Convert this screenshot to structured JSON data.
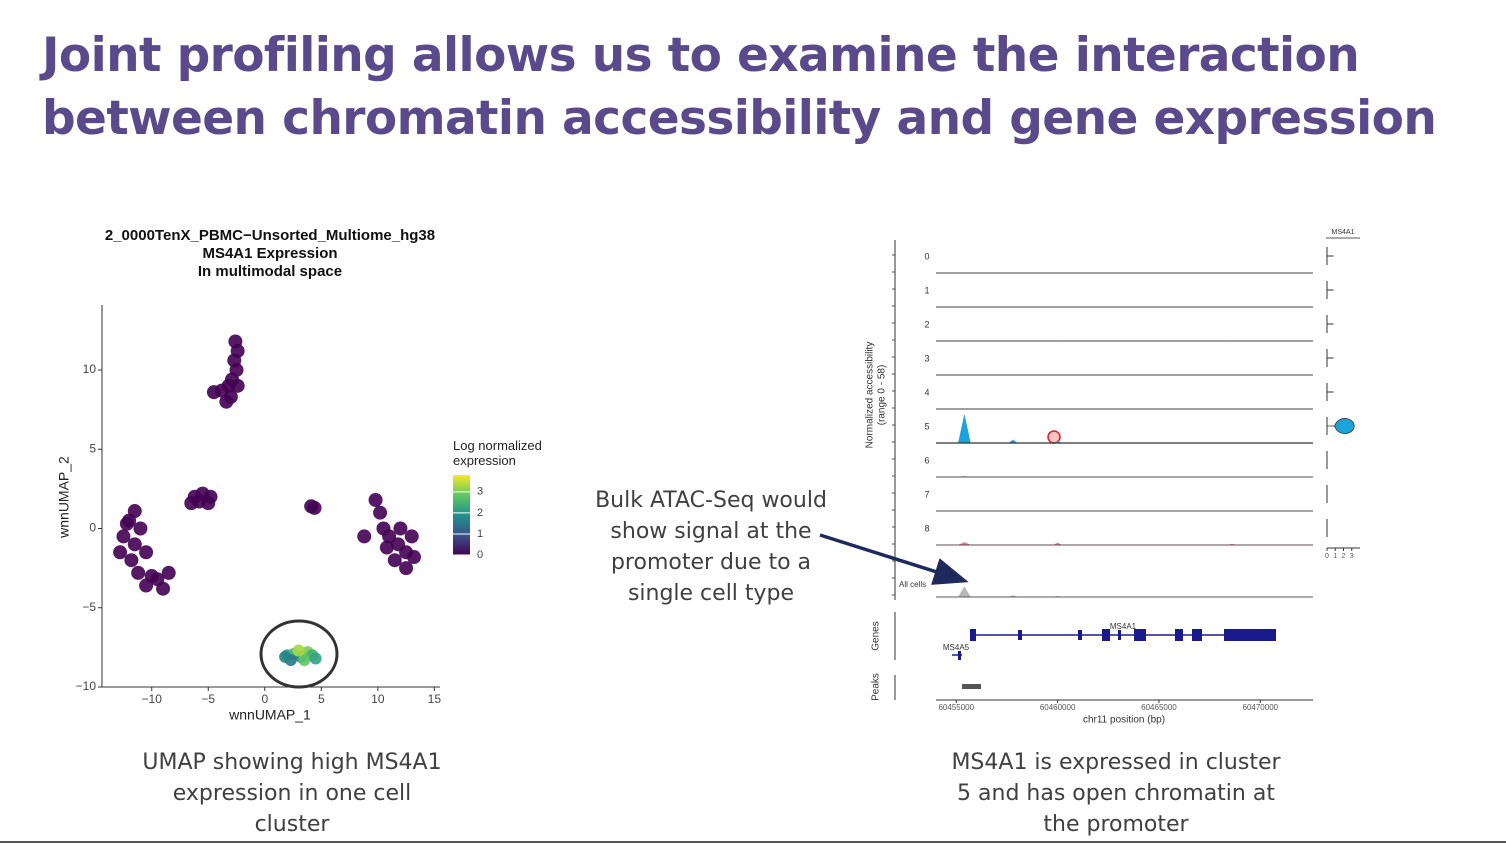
{
  "title": "Joint profiling allows us to examine the interaction between chromatin accessibility and gene expression",
  "chart_data": [
    {
      "type": "scatter",
      "title": [
        "2_0000TenX_PBMC−Unsorted_Multiome_hg38",
        "MS4A1 Expression",
        "In multimodal space"
      ],
      "x_label": "wnnUMAP_1",
      "y_label": "wnnUMAP_2",
      "xlim": [
        -14.4,
        15.5
      ],
      "ylim": [
        -10,
        14.1
      ],
      "xticks": [
        {
          "value": -10,
          "label": "−10"
        },
        {
          "value": -5,
          "label": "−5"
        },
        0,
        5,
        10,
        15
      ],
      "yticks": [
        {
          "value": -10,
          "label": "−10"
        },
        {
          "value": -5,
          "label": "−5"
        },
        0,
        5,
        10
      ],
      "x": [
        -2.6,
        -2.4,
        -2.7,
        -2.5,
        -2.9,
        -3.2,
        -3.8,
        -4.5,
        -3.0,
        -2.4,
        -3.4,
        -5.5,
        -6.2,
        -4.8,
        -5.8,
        -5.0,
        -6.5,
        -12.5,
        -12.0,
        -11.5,
        -12.8,
        -11.0,
        -11.8,
        -10.5,
        -11.2,
        -10.0,
        -9.5,
        -8.5,
        -9.0,
        -10.5,
        -12.2,
        -11.5,
        4.1,
        4.4,
        9.8,
        10.2,
        10.5,
        11.0,
        11.8,
        12.5,
        13.0,
        12.0,
        11.5,
        12.5,
        10.8,
        13.2,
        8.8,
        2.0,
        2.6,
        3.2,
        3.8,
        4.2,
        2.3,
        3.5,
        4.5,
        1.8,
        3.0
      ],
      "y": [
        11.8,
        11.2,
        10.6,
        10.0,
        9.4,
        9.0,
        8.7,
        8.6,
        8.3,
        9.0,
        8.0,
        2.2,
        2.0,
        2.0,
        1.7,
        1.6,
        1.6,
        -0.5,
        0.5,
        -1.0,
        -1.5,
        0.0,
        -2.0,
        -1.5,
        -2.8,
        -3.0,
        -3.2,
        -2.8,
        -3.8,
        -3.6,
        0.3,
        1.1,
        1.4,
        1.3,
        1.8,
        1.0,
        0.0,
        -0.5,
        -1.0,
        -1.5,
        -0.5,
        0.0,
        -2.0,
        -2.5,
        -1.2,
        -1.8,
        -0.5,
        -8.0,
        -7.9,
        -8.1,
        -7.8,
        -8.0,
        -8.3,
        -8.3,
        -8.2,
        -8.1,
        -7.7
      ],
      "values": [
        0,
        0,
        0,
        0,
        0,
        0,
        0,
        0,
        0,
        0,
        0,
        0,
        0,
        0,
        0,
        0,
        0,
        0,
        0,
        0,
        0,
        0,
        0,
        0,
        0,
        0,
        0,
        0,
        0,
        0,
        0,
        0,
        0,
        0,
        0,
        0,
        0,
        0,
        0,
        0,
        0,
        0,
        0,
        0,
        0,
        0,
        0,
        2.1,
        2.6,
        1.8,
        3.0,
        2.4,
        1.5,
        2.8,
        2.2,
        1.7,
        3.3
      ],
      "legend_title": "Log normalized expression",
      "colormap": [
        "#440154",
        "#3b528b",
        "#21918c",
        "#5ec962",
        "#fde725"
      ],
      "clim": [
        0,
        3.8
      ],
      "cticks": [
        0,
        1,
        2,
        3
      ]
    },
    {
      "type": "coverage",
      "y_label": [
        "Normalized accessibility",
        "(range 0 - 58)"
      ],
      "ylim": [
        0,
        58
      ],
      "x": [
        60454000,
        60455100,
        60455400,
        60455700,
        60457600,
        60457800,
        60458000,
        60459800,
        60460000,
        60460200,
        60468400,
        60468600,
        60468800,
        60472600
      ],
      "xlim": [
        60454000,
        60472600
      ],
      "xticks": [
        60455000,
        60460000,
        60465000,
        60470000
      ],
      "x_label": "chr11 position (bp)",
      "series": [
        {
          "name": "0",
          "color": "#444444",
          "values": [
            0,
            0,
            0,
            0,
            0,
            0,
            0,
            0,
            0,
            0,
            0,
            0,
            0,
            0
          ]
        },
        {
          "name": "1",
          "color": "#444444",
          "values": [
            0,
            0,
            0,
            0,
            0,
            0,
            0,
            0,
            0,
            0,
            0,
            0,
            0,
            0
          ]
        },
        {
          "name": "2",
          "color": "#444444",
          "values": [
            0,
            0,
            0,
            0,
            0,
            0,
            0,
            0,
            0,
            0,
            0,
            0,
            0,
            0
          ]
        },
        {
          "name": "3",
          "color": "#444444",
          "values": [
            0,
            0,
            0,
            0,
            0,
            0,
            0,
            0,
            0,
            0,
            0,
            0,
            0,
            0
          ]
        },
        {
          "name": "4",
          "color": "#444444",
          "values": [
            0,
            0,
            0,
            0,
            0,
            0,
            0,
            0,
            0,
            0,
            0,
            0,
            0,
            0
          ]
        },
        {
          "name": "5",
          "color": "#1ba3dc",
          "values": [
            0,
            0,
            54,
            0,
            0,
            6,
            0,
            0,
            3,
            0,
            0,
            0,
            0,
            0
          ]
        },
        {
          "name": "6",
          "color": "#777777",
          "values": [
            0,
            0,
            1,
            0,
            0,
            0,
            0,
            0,
            0,
            0,
            0,
            0,
            0,
            0
          ]
        },
        {
          "name": "7",
          "color": "#777777",
          "values": [
            0,
            0,
            0,
            0,
            0,
            0,
            0,
            0,
            0,
            0,
            0,
            0,
            0,
            0
          ]
        },
        {
          "name": "8",
          "color": "#e07a8a",
          "values": [
            0,
            0,
            5,
            0,
            0,
            0,
            0,
            0,
            4,
            0,
            0,
            2,
            0,
            0
          ]
        },
        {
          "name": "All cells",
          "color": "#b8b8b8",
          "values": [
            0,
            0,
            20,
            0,
            0,
            3,
            0,
            0,
            2,
            0,
            0,
            0,
            0,
            0
          ]
        }
      ],
      "gene_track_label": "Genes",
      "peak_track_label": "Peaks",
      "genes": [
        "MS4A1",
        "MS4A5"
      ],
      "violin": {
        "title": "MS4A1",
        "xlim": [
          0,
          4
        ],
        "xticks": [
          0,
          1,
          2,
          3
        ],
        "color": "#1ba3dc",
        "values": [
          0.8,
          0.8,
          0.8,
          0.8,
          0.8,
          3.3,
          0,
          0,
          0
        ]
      }
    }
  ],
  "left_caption": "UMAP showing high MS4A1 expression in one cell cluster",
  "annotation": "Bulk ATAC-Seq would show signal at the promoter due to a single cell type",
  "right_caption": "MS4A1 is expressed in cluster 5 and has open chromatin at the promoter"
}
